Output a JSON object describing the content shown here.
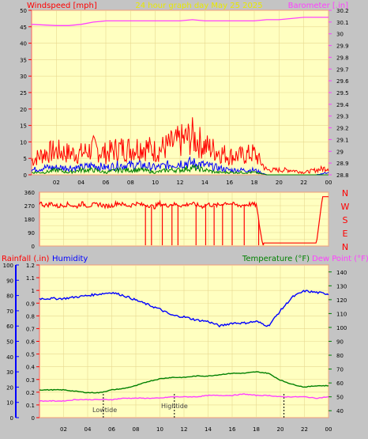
{
  "header": {
    "title": "24 hour graph day   May 25 2025",
    "left_label": "Windspeed [mph]",
    "right_label": "Barometer [.in]"
  },
  "lower_header": {
    "rainfall_label": "Rainfall (.in)",
    "humidity_label": "Humidity",
    "temperature_label": "Temperature (°F)",
    "dewpoint_label": "Dew Point (°F)"
  },
  "tide_labels": {
    "low": "Lowtide",
    "high": "Hightide"
  },
  "colors": {
    "background": "#c4c4c4",
    "plot_bg": "#ffffc0",
    "wind_gust": "#ff0000",
    "wind_avg": "#0000ff",
    "wind_low": "#008000",
    "barometer": "#ff40ff",
    "direction": "#ff0000",
    "humidity": "#0000ff",
    "temperature": "#008000",
    "dewpoint": "#ff40ff",
    "title": "#e8e800",
    "right_axis_text": "#ff40ff"
  },
  "chart_data": [
    {
      "id": "wind-baro",
      "type": "line",
      "x_ticks": [
        "02",
        "04",
        "06",
        "08",
        "10",
        "12",
        "14",
        "16",
        "18",
        "20",
        "22",
        "00"
      ],
      "y_left": {
        "label": "Windspeed [mph]",
        "range": [
          0,
          50
        ],
        "ticks": [
          0,
          5,
          10,
          15,
          20,
          25,
          30,
          35,
          40,
          45,
          50
        ]
      },
      "y_right": {
        "label": "Barometer [.in]",
        "range": [
          28.8,
          30.2
        ],
        "ticks": [
          "28.8",
          "28.9",
          "29",
          "29.1",
          "29.2",
          "29.3",
          "29.4",
          "29.5",
          "29.6",
          "29.7",
          "29.8",
          "29.9",
          "30",
          "30.1",
          "30.2"
        ]
      },
      "series": [
        {
          "name": "Barometer",
          "axis": "right",
          "x": [
            0,
            2,
            3,
            4,
            5,
            6,
            7,
            8,
            9,
            10,
            11,
            12,
            13,
            14,
            15,
            16,
            17,
            18,
            19,
            20,
            21,
            22,
            23,
            24
          ],
          "y": [
            30.08,
            30.07,
            30.07,
            30.08,
            30.1,
            30.11,
            30.11,
            30.11,
            30.11,
            30.11,
            30.11,
            30.11,
            30.12,
            30.11,
            30.11,
            30.11,
            30.11,
            30.11,
            30.12,
            30.12,
            30.13,
            30.14,
            30.14,
            30.14
          ]
        },
        {
          "name": "Gust",
          "axis": "left",
          "x": [
            0,
            1,
            2,
            3,
            4,
            5,
            6,
            7,
            8,
            9,
            10,
            11,
            12,
            13,
            14,
            15,
            16,
            17,
            18,
            19,
            20,
            21,
            22,
            23,
            24
          ],
          "y": [
            6,
            9,
            10,
            9,
            9,
            11,
            9,
            11,
            11,
            12,
            10,
            12,
            14,
            16,
            12,
            10,
            8,
            8,
            9,
            2,
            2,
            2,
            1,
            2,
            3
          ]
        },
        {
          "name": "Average",
          "axis": "left",
          "x": [
            0,
            1,
            2,
            3,
            4,
            5,
            6,
            7,
            8,
            9,
            10,
            11,
            12,
            13,
            14,
            15,
            16,
            17,
            18,
            19,
            20,
            21,
            22,
            23,
            24
          ],
          "y": [
            2,
            3,
            3,
            3,
            3,
            4,
            3,
            4,
            4,
            4,
            3,
            4,
            5,
            5,
            4,
            3,
            2,
            2,
            2,
            0,
            0,
            0,
            0,
            0,
            1
          ]
        },
        {
          "name": "Low",
          "axis": "left",
          "x": [
            0,
            1,
            2,
            3,
            4,
            5,
            6,
            7,
            8,
            9,
            10,
            11,
            12,
            13,
            14,
            15,
            16,
            17,
            18,
            19,
            20,
            21,
            22,
            23,
            24
          ],
          "y": [
            1,
            1,
            2,
            1,
            2,
            2,
            1,
            2,
            2,
            2,
            1,
            2,
            2,
            3,
            2,
            1,
            1,
            1,
            1,
            0,
            0,
            0,
            0,
            0,
            0
          ]
        }
      ]
    },
    {
      "id": "direction",
      "type": "line",
      "x_ticks": [
        "02",
        "04",
        "06",
        "08",
        "10",
        "12",
        "14",
        "16",
        "18",
        "20",
        "22",
        "00"
      ],
      "y_left": {
        "range": [
          0,
          360
        ],
        "ticks": [
          0,
          45,
          90,
          135,
          180,
          225,
          270,
          315,
          360
        ]
      },
      "y_right": {
        "compass": [
          "N",
          "W",
          "S",
          "E",
          "N"
        ]
      },
      "series": [
        {
          "name": "Direction",
          "x": [
            0,
            0.5,
            1,
            1.5,
            2,
            2.5,
            3,
            3.5,
            4,
            4.5,
            5,
            5.5,
            6,
            6.5,
            7,
            7.5,
            8,
            8.5,
            9,
            9.5,
            10,
            10.5,
            11,
            11.5,
            12,
            12.5,
            13,
            13.5,
            14,
            14.5,
            15,
            15.5,
            16,
            16.5,
            17,
            17.5,
            18,
            18.5,
            19,
            19.5,
            20,
            20.5,
            21,
            21.5,
            22,
            22.5,
            23,
            23.5,
            24
          ],
          "y": [
            290,
            270,
            285,
            265,
            275,
            280,
            260,
            285,
            270,
            275,
            280,
            265,
            270,
            290,
            275,
            270,
            285,
            275,
            275,
            260,
            285,
            270,
            280,
            275,
            270,
            285,
            275,
            265,
            280,
            270,
            275,
            290,
            280,
            270,
            275,
            280,
            275,
            20,
            20,
            20,
            20,
            20,
            20,
            20,
            20,
            20,
            20,
            330,
            330
          ]
        }
      ]
    },
    {
      "id": "humidity-temp",
      "type": "line",
      "x_ticks": [
        "02",
        "04",
        "06",
        "08",
        "10",
        "12",
        "14",
        "16",
        "18",
        "20",
        "22",
        "00"
      ],
      "y_left_rain": {
        "label": "Rainfall (.in)",
        "range": [
          0,
          1.2
        ],
        "ticks": [
          "0",
          "0.1",
          "0.2",
          "0.3",
          "0.4",
          "0.5",
          "0.6",
          "0.7",
          "0.8",
          "0.9",
          "1",
          "1.1",
          "1.2"
        ]
      },
      "y_left_humidity": {
        "label": "Humidity",
        "range": [
          0,
          100
        ],
        "ticks": [
          0,
          10,
          20,
          30,
          40,
          50,
          60,
          70,
          80,
          90,
          100
        ]
      },
      "y_right": {
        "label": "Temperature (°F)",
        "range": [
          35,
          145
        ],
        "ticks": [
          40,
          50,
          60,
          70,
          80,
          90,
          100,
          110,
          120,
          130,
          140
        ]
      },
      "series": [
        {
          "name": "Humidity",
          "axis": "humidity",
          "x": [
            0,
            1,
            2,
            3,
            4,
            5,
            6,
            7,
            8,
            9,
            10,
            11,
            12,
            13,
            14,
            15,
            16,
            17,
            18,
            19,
            20,
            21,
            22,
            23,
            24
          ],
          "y": [
            78,
            78,
            78,
            79,
            80,
            81,
            82,
            80,
            77,
            74,
            71,
            67,
            66,
            64,
            63,
            60,
            62,
            62,
            63,
            60,
            70,
            79,
            83,
            82,
            81
          ]
        },
        {
          "name": "Temperature",
          "axis": "right",
          "x": [
            0,
            1,
            2,
            3,
            4,
            5,
            6,
            7,
            8,
            9,
            10,
            11,
            12,
            13,
            14,
            15,
            16,
            17,
            18,
            19,
            20,
            21,
            22,
            23,
            24
          ],
          "y": [
            55,
            55,
            55,
            54,
            53,
            53,
            55,
            56,
            58,
            61,
            63,
            64,
            64,
            65,
            65,
            66,
            67,
            67,
            68,
            67,
            62,
            59,
            57,
            58,
            58
          ]
        },
        {
          "name": "Dew Point",
          "axis": "right",
          "x": [
            0,
            1,
            2,
            3,
            4,
            5,
            6,
            7,
            8,
            9,
            10,
            11,
            12,
            13,
            14,
            15,
            16,
            17,
            18,
            19,
            20,
            21,
            22,
            23,
            24
          ],
          "y": [
            47,
            47,
            47,
            48,
            48,
            48,
            48,
            49,
            49,
            49,
            49,
            50,
            50,
            50,
            51,
            51,
            51,
            52,
            51,
            51,
            50,
            50,
            50,
            49,
            50
          ]
        }
      ],
      "tides": [
        {
          "label": "Lowtide",
          "x": 5.3
        },
        {
          "label": "Hightide",
          "x": 11.2
        },
        {
          "label": "",
          "x": 20.3
        }
      ]
    }
  ]
}
